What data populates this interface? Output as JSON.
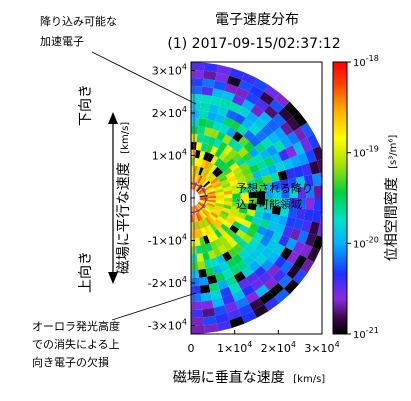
{
  "chart_data": {
    "type": "heatmap",
    "title": "電子速度分布",
    "subtitle": "(1) 2017-09-15/02:37:12",
    "xlabel": "磁場に垂直な速度",
    "xunit": "[km/s]",
    "ylabel": "磁場に平行な速度",
    "yunit": "[km/s]",
    "xlim": [
      0,
      30000
    ],
    "ylim": [
      -32000,
      32000
    ],
    "x_ticks": [
      {
        "value": 0,
        "base": "0",
        "exp": ""
      },
      {
        "value": 10000,
        "base": "1×10",
        "exp": "4"
      },
      {
        "value": 20000,
        "base": "2×10",
        "exp": "4"
      },
      {
        "value": 30000,
        "base": "3×10",
        "exp": "4"
      }
    ],
    "y_ticks": [
      {
        "value": 30000,
        "base": "3×10",
        "exp": "4"
      },
      {
        "value": 20000,
        "base": "2×10",
        "exp": "4"
      },
      {
        "value": 10000,
        "base": "1×10",
        "exp": "4"
      },
      {
        "value": 0,
        "base": "0",
        "exp": ""
      },
      {
        "value": -10000,
        "base": "-1×10",
        "exp": "4"
      },
      {
        "value": -20000,
        "base": "-2×10",
        "exp": "4"
      },
      {
        "value": -30000,
        "base": "-3×10",
        "exp": "4"
      }
    ],
    "colorbar": {
      "label": "位相空間密度",
      "unit": "[s³/m⁶]",
      "scale": "log",
      "range": [
        1e-21,
        1e-18
      ],
      "ticks": [
        {
          "value": 1e-18,
          "base": "10",
          "exp": "-18"
        },
        {
          "value": 1e-19,
          "base": "10",
          "exp": "-19"
        },
        {
          "value": 1e-20,
          "base": "10",
          "exp": "-20"
        },
        {
          "value": 1e-21,
          "base": "10",
          "exp": "-21"
        }
      ]
    },
    "distribution": {
      "grid": "polar",
      "v_min": 2000,
      "v_max": 32000,
      "speed_bins": 16,
      "pitch_angle_bins": 32,
      "log_density_center": -18.5,
      "log_density_edge": -20.8
    },
    "annotations": [
      {
        "text": "降り込み可能な加速電子",
        "lines": [
          "降り込み可能な",
          "加速電子"
        ]
      },
      {
        "text": "予想される降り込み可能領域",
        "lines": [
          "予想される降り",
          "込み可能領域"
        ]
      },
      {
        "text": "オーロラ発光高度での消失による上向き電子の欠損",
        "lines": [
          "オーロラ発光高度",
          "での消失による上",
          "向き電子の欠損"
        ]
      },
      {
        "text": "下向き"
      },
      {
        "text": "上向き"
      }
    ]
  }
}
